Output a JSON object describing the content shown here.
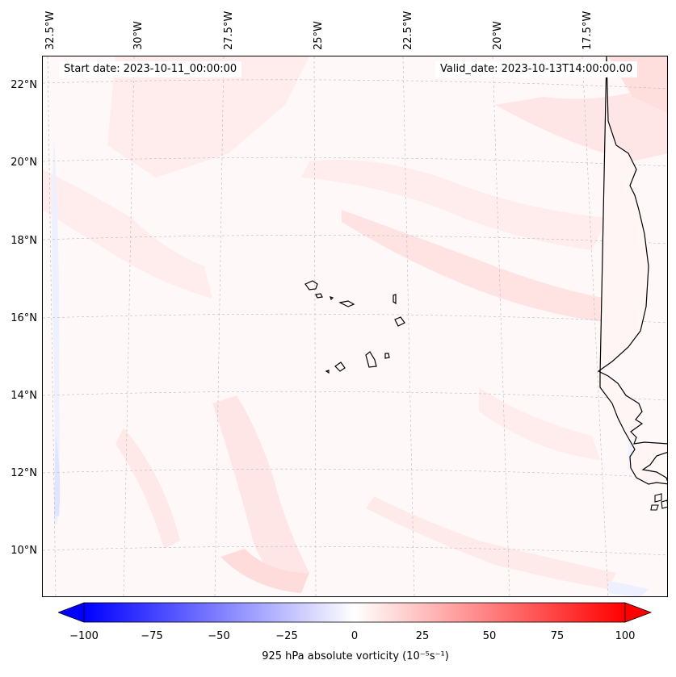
{
  "map": {
    "start_date_label": "Start date: 2023-10-11_00:00:00",
    "valid_date_label": "Valid_date: 2023-10-13T14:00:00.00",
    "longitude_labels": [
      "32.5°W",
      "30°W",
      "27.5°W",
      "25°W",
      "22.5°W",
      "20°W",
      "17.5°W"
    ],
    "latitude_labels": [
      "22°N",
      "20°N",
      "18°N",
      "16°N",
      "14°N",
      "12°N",
      "10°N"
    ],
    "coastline_color": "#000000",
    "field_colormap": "blue-white-red"
  },
  "colorbar": {
    "title": "925 hPa absolute vorticity (10⁻⁵s⁻¹)",
    "tick_labels": [
      "−100",
      "−75",
      "−50",
      "−25",
      "0",
      "25",
      "50",
      "75",
      "100"
    ],
    "min": -100,
    "max": 100,
    "negative_color": "#0000ff",
    "zero_color": "#ffffff",
    "positive_color": "#ff0000"
  }
}
